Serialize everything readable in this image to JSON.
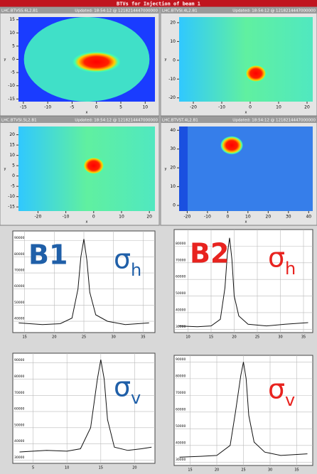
{
  "title": "BTVs for Injection of beam 1",
  "screens": [
    {
      "name": "LHC.BTVSS.6L2.B1",
      "updated": "Updated: 18:54:12 @ 1218214447000000",
      "xlabel": "x",
      "ylabel": "y",
      "xlim": [
        -16,
        12
      ],
      "ylim": [
        -16,
        16
      ],
      "xticks": [
        -15,
        -10,
        -5,
        0,
        5,
        10
      ],
      "yticks": [
        -15,
        -10,
        -5,
        0,
        5,
        10,
        15
      ],
      "spot": [
        0,
        -1
      ]
    },
    {
      "name": "LHC.BTVSI.4L2.B1",
      "updated": "Updated: 18:54:12 @ 1218214447000000",
      "xlabel": "x",
      "ylabel": "y",
      "xlim": [
        -25,
        22
      ],
      "ylim": [
        -22,
        23
      ],
      "xticks": [
        -20,
        -10,
        0,
        10,
        20
      ],
      "yticks": [
        -20,
        -10,
        0,
        10,
        20
      ],
      "spot": [
        2,
        -7
      ]
    },
    {
      "name": "LHC.BTVSI.5L2.B1",
      "updated": "Updated: 18:54:12 @ 1218214447000000",
      "xlabel": "x",
      "ylabel": "y",
      "xlim": [
        -27,
        22
      ],
      "ylim": [
        -17,
        24
      ],
      "xticks": [
        -20,
        -10,
        0,
        10,
        20
      ],
      "yticks": [
        -15,
        -10,
        -5,
        0,
        5,
        10,
        15,
        20
      ],
      "spot": [
        0,
        5
      ]
    },
    {
      "name": "LHC.BTVST.4L2.B1",
      "updated": "Updated: 18:54:12 @ 1218214447000000",
      "xlabel": "x",
      "ylabel": "y",
      "xlim": [
        -24,
        42
      ],
      "ylim": [
        -3,
        42
      ],
      "xticks": [
        -20,
        -10,
        0,
        10,
        20,
        30,
        40
      ],
      "yticks": [
        0,
        10,
        20,
        30,
        40
      ],
      "spot": [
        2,
        32
      ]
    }
  ],
  "profiles": [
    {
      "beam": "B1",
      "label": "σ",
      "sub": "h",
      "color": "#1f5fa8",
      "xlim": [
        13,
        37
      ],
      "ylim": [
        33000,
        96000
      ],
      "xticks": [
        15,
        20,
        25,
        30,
        35
      ],
      "yticks": [
        40000,
        50000,
        60000,
        70000,
        80000,
        90000
      ],
      "x": [
        14,
        18,
        21,
        23,
        24,
        24.5,
        25,
        25.5,
        26,
        27,
        29,
        32,
        36
      ],
      "y": [
        39000,
        38000,
        38500,
        42000,
        60000,
        80000,
        91000,
        78000,
        58000,
        44000,
        40000,
        38000,
        39000
      ]
    },
    {
      "beam": "B2",
      "label": "σ",
      "sub": "h",
      "color": "#e8231f",
      "xlim": [
        7,
        37
      ],
      "ylim": [
        28000,
        90000
      ],
      "xticks": [
        10,
        15,
        20,
        25,
        30,
        35
      ],
      "yticks": [
        30000,
        40000,
        50000,
        60000,
        70000,
        80000
      ],
      "x": [
        8,
        12,
        15,
        17,
        18,
        18.5,
        19,
        19.5,
        20,
        21,
        23,
        27,
        31,
        36
      ],
      "y": [
        32000,
        31500,
        32000,
        36000,
        55000,
        75000,
        85000,
        72000,
        50000,
        38000,
        33000,
        32000,
        33000,
        34000
      ]
    },
    {
      "beam": null,
      "label": "σ",
      "sub": "v",
      "color": "#1f5fa8",
      "xlim": [
        2,
        23
      ],
      "ylim": [
        28000,
        96000
      ],
      "xticks": [
        5,
        10,
        15,
        20
      ],
      "yticks": [
        30000,
        40000,
        50000,
        60000,
        70000,
        80000,
        90000
      ],
      "x": [
        3,
        7,
        10,
        12,
        13.5,
        14.5,
        15,
        15.5,
        16,
        17,
        19,
        21,
        22.5
      ],
      "y": [
        35000,
        36000,
        35500,
        37000,
        50000,
        80000,
        92000,
        80000,
        55000,
        38000,
        36000,
        37000,
        38000
      ]
    },
    {
      "beam": null,
      "label": "σ",
      "sub": "v",
      "color": "#e8231f",
      "xlim": [
        12,
        38
      ],
      "ylim": [
        28000,
        94000
      ],
      "xticks": [
        15,
        20,
        25,
        30,
        35
      ],
      "yticks": [
        30000,
        40000,
        50000,
        60000,
        70000,
        80000,
        90000
      ],
      "x": [
        13,
        17,
        20,
        22.5,
        23.5,
        24.5,
        25,
        25.5,
        26,
        27,
        29,
        32,
        37
      ],
      "y": [
        33000,
        33500,
        34000,
        40000,
        60000,
        82000,
        90000,
        80000,
        58000,
        42000,
        36000,
        34000,
        35000
      ]
    }
  ]
}
